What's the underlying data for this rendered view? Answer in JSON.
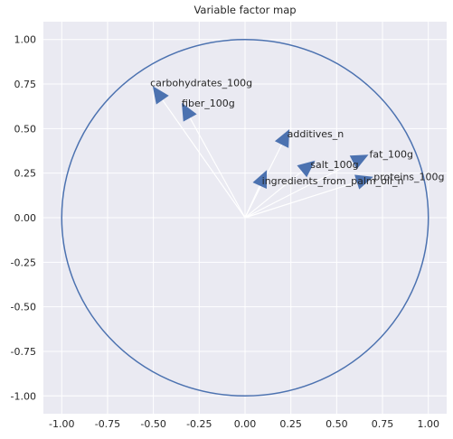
{
  "chart_data": {
    "type": "scatter",
    "title": "Variable factor map",
    "xlabel": "",
    "ylabel": "",
    "xlim": [
      -1.1,
      1.1
    ],
    "ylim": [
      -1.1,
      1.1
    ],
    "x_ticks": [
      "-1.00",
      "-0.75",
      "-0.50",
      "-0.25",
      "0.00",
      "0.25",
      "0.50",
      "0.75",
      "1.00"
    ],
    "y_ticks": [
      "-1.00",
      "-0.75",
      "-0.50",
      "-0.25",
      "0.00",
      "0.25",
      "0.50",
      "0.75",
      "1.00"
    ],
    "grid": true,
    "unit_circle": true,
    "arrows": [
      {
        "label": "carbohydrates_100g",
        "x": -0.45,
        "y": 0.66
      },
      {
        "label": "fiber_100g",
        "x": -0.3,
        "y": 0.56
      },
      {
        "label": "additives_n",
        "x": 0.2,
        "y": 0.41
      },
      {
        "label": "fat_100g",
        "x": 0.59,
        "y": 0.31
      },
      {
        "label": "salt_100g",
        "x": 0.31,
        "y": 0.26
      },
      {
        "label": "proteins_100g",
        "x": 0.61,
        "y": 0.2
      },
      {
        "label": "ingredients_from_palm_oil_n",
        "x": 0.08,
        "y": 0.18
      }
    ],
    "colors": {
      "background": "#eaeaf2",
      "grid": "#ffffff",
      "circle": "#4c72b0",
      "arrow_line": "#ffffff",
      "arrow_head": "#4c72b0"
    }
  }
}
